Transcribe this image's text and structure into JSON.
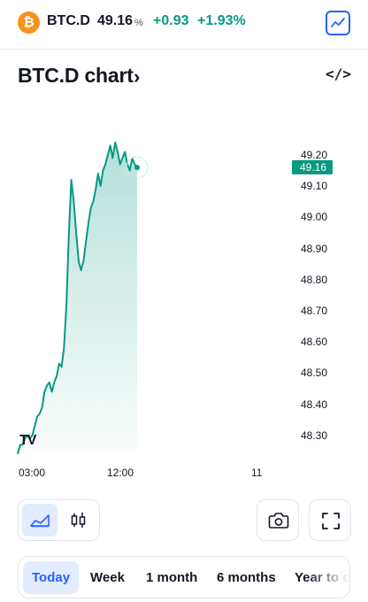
{
  "ticker": {
    "logo_glyph": "₿",
    "symbol": "BTC.D",
    "price": "49.16",
    "unit": "%",
    "change": "+0.93",
    "change_pct": "+1.93%",
    "accent_up": "#089981"
  },
  "header": {
    "title": "BTC.D chart",
    "title_chevron": "›",
    "embed_label": "</>"
  },
  "chart_data": {
    "type": "area",
    "x_ticks": [
      "03:00",
      "12:00",
      "11"
    ],
    "y_ticks": [
      "49.20",
      "49.10",
      "49.00",
      "48.90",
      "48.80",
      "48.70",
      "48.60",
      "48.50",
      "48.40",
      "48.30"
    ],
    "last_value": "49.16",
    "ylim": [
      48.25,
      49.27
    ],
    "line_color": "#089981",
    "watermark": "TV",
    "points": [
      [
        0,
        48.24
      ],
      [
        1,
        48.27
      ],
      [
        2,
        48.27
      ],
      [
        3,
        48.29
      ],
      [
        4,
        48.3
      ],
      [
        5,
        48.29
      ],
      [
        6,
        48.3
      ],
      [
        7,
        48.33
      ],
      [
        8,
        48.36
      ],
      [
        9,
        48.37
      ],
      [
        10,
        48.39
      ],
      [
        11,
        48.44
      ],
      [
        12,
        48.46
      ],
      [
        13,
        48.47
      ],
      [
        14,
        48.44
      ],
      [
        15,
        48.47
      ],
      [
        16,
        48.49
      ],
      [
        17,
        48.53
      ],
      [
        18,
        48.52
      ],
      [
        19,
        48.58
      ],
      [
        20,
        48.72
      ],
      [
        21,
        48.95
      ],
      [
        22,
        49.12
      ],
      [
        23,
        49.05
      ],
      [
        24,
        48.95
      ],
      [
        25,
        48.86
      ],
      [
        26,
        48.83
      ],
      [
        27,
        48.86
      ],
      [
        28,
        48.92
      ],
      [
        29,
        48.98
      ],
      [
        30,
        49.03
      ],
      [
        31,
        49.05
      ],
      [
        32,
        49.09
      ],
      [
        33,
        49.14
      ],
      [
        34,
        49.1
      ],
      [
        35,
        49.15
      ],
      [
        36,
        49.17
      ],
      [
        37,
        49.2
      ],
      [
        38,
        49.23
      ],
      [
        39,
        49.19
      ],
      [
        40,
        49.24
      ],
      [
        41,
        49.21
      ],
      [
        42,
        49.17
      ],
      [
        43,
        49.19
      ],
      [
        44,
        49.21
      ],
      [
        45,
        49.17
      ],
      [
        46,
        49.15
      ],
      [
        47,
        49.19
      ],
      [
        48,
        49.17
      ],
      [
        49,
        49.16
      ]
    ]
  },
  "toolbar": {
    "chart_types": [
      "area-chart-icon",
      "candles-icon"
    ],
    "actions": [
      "camera-icon",
      "fullscreen-icon"
    ]
  },
  "ranges": [
    {
      "label": "Today",
      "active": true
    },
    {
      "label": "Week",
      "active": false
    },
    {
      "label": "1 month",
      "active": false
    },
    {
      "label": "6 months",
      "active": false
    },
    {
      "label": "Year to date",
      "active": false
    }
  ]
}
